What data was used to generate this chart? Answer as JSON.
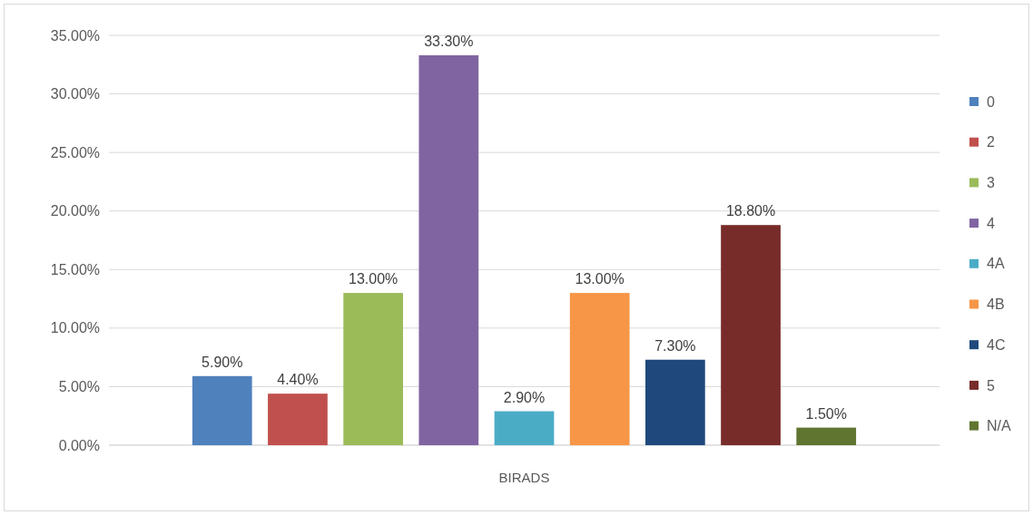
{
  "chart_data": {
    "type": "bar",
    "categories": [
      "BIRADS"
    ],
    "series": [
      {
        "name": "0",
        "color": "#4f81bd",
        "values": [
          5.9
        ],
        "value_labels": [
          "5.90%"
        ]
      },
      {
        "name": "2",
        "color": "#c0504d",
        "values": [
          4.4
        ],
        "value_labels": [
          "4.40%"
        ]
      },
      {
        "name": "3",
        "color": "#9bbb59",
        "values": [
          13.0
        ],
        "value_labels": [
          "13.00%"
        ]
      },
      {
        "name": "4",
        "color": "#8064a2",
        "values": [
          33.3
        ],
        "value_labels": [
          "33.30%"
        ]
      },
      {
        "name": "4A",
        "color": "#4bacc6",
        "values": [
          2.9
        ],
        "value_labels": [
          "2.90%"
        ]
      },
      {
        "name": "4B",
        "color": "#f79646",
        "values": [
          13.0
        ],
        "value_labels": [
          "13.00%"
        ]
      },
      {
        "name": "4C",
        "color": "#1f497d",
        "values": [
          7.3
        ],
        "value_labels": [
          "7.30%"
        ]
      },
      {
        "name": "5",
        "color": "#772c2a",
        "values": [
          18.8
        ],
        "value_labels": [
          "18.80%"
        ]
      },
      {
        "name": "N/A",
        "color": "#5f7530",
        "values": [
          1.5
        ],
        "value_labels": [
          "1.50%"
        ]
      }
    ],
    "ylim": [
      0,
      35
    ],
    "yticks": [
      {
        "value": 0,
        "label": "0.00%"
      },
      {
        "value": 5,
        "label": "5.00%"
      },
      {
        "value": 10,
        "label": "10.00%"
      },
      {
        "value": 15,
        "label": "15.00%"
      },
      {
        "value": 20,
        "label": "20.00%"
      },
      {
        "value": 25,
        "label": "25.00%"
      },
      {
        "value": 30,
        "label": "30.00%"
      },
      {
        "value": 35,
        "label": "35.00%"
      }
    ],
    "grid": "y",
    "legend": "right"
  }
}
